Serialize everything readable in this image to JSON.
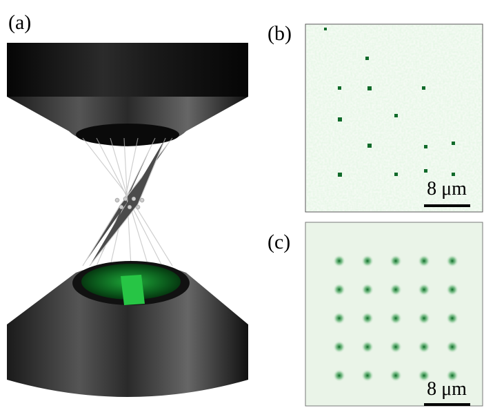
{
  "panels": [
    {
      "label": "(a)"
    },
    {
      "label": "(b)",
      "scale_bar": "8 μm"
    },
    {
      "label": "(c)",
      "scale_bar": "8 μm"
    }
  ]
}
